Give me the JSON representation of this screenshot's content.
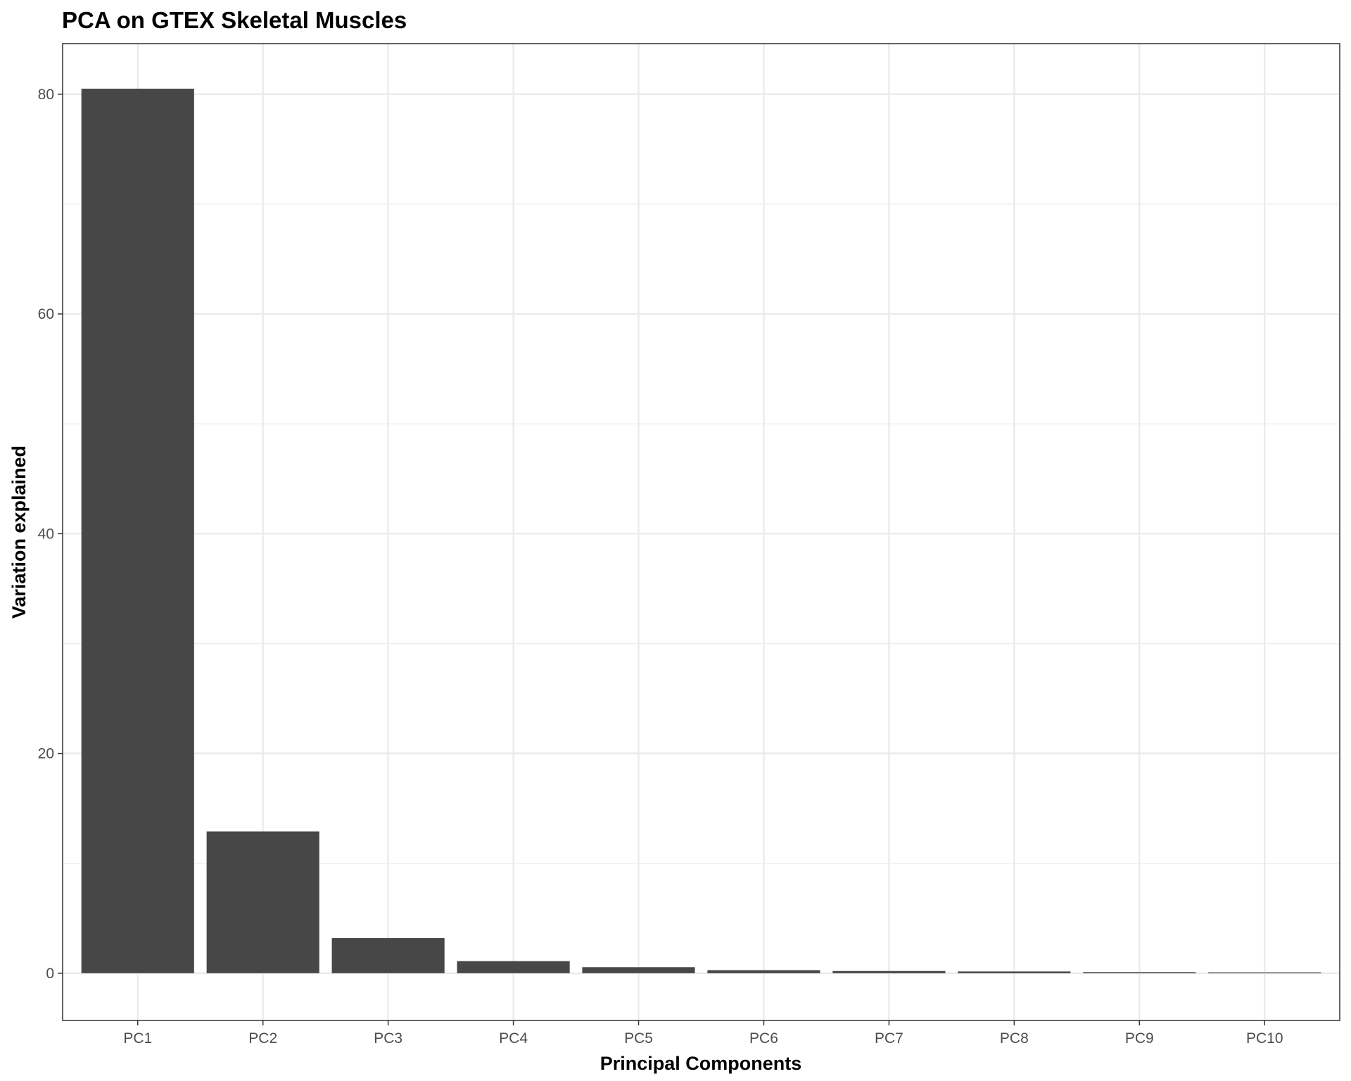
{
  "chart_data": {
    "type": "bar",
    "title": "PCA on GTEX Skeletal Muscles",
    "xlabel": "Principal Components",
    "ylabel": "Variation explained",
    "categories": [
      "PC1",
      "PC2",
      "PC3",
      "PC4",
      "PC5",
      "PC6",
      "PC7",
      "PC8",
      "PC9",
      "PC10"
    ],
    "values": [
      80.5,
      12.9,
      3.2,
      1.1,
      0.55,
      0.28,
      0.2,
      0.16,
      0.1,
      0.08
    ],
    "ylim": [
      -4.3,
      84.6
    ],
    "yticks": [
      0,
      20,
      40,
      60,
      80
    ],
    "ytick_labels": [
      "0",
      "20",
      "40",
      "60",
      "80"
    ],
    "grid": true,
    "legend": "none",
    "colors": {
      "bar": "#474747",
      "grid": "#ebebeb",
      "panel_border": "#333333",
      "tick_label": "#4d4d4d",
      "background": "#ffffff"
    }
  }
}
